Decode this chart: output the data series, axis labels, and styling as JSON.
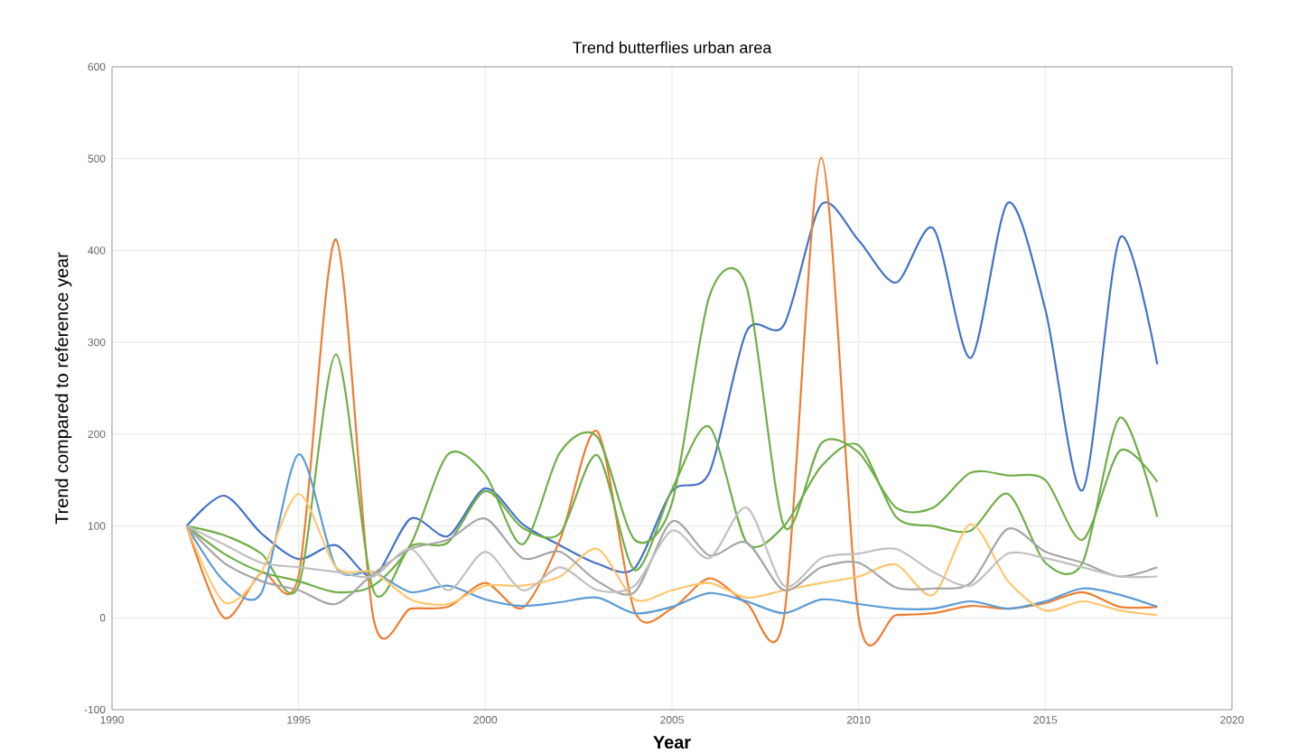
{
  "chart_data": {
    "type": "line",
    "title": "Trend butterflies urban area",
    "xlabel": "Year",
    "ylabel": "Trend compared to reference year",
    "x": [
      1992,
      1993,
      1994,
      1995,
      1996,
      1997,
      1998,
      1999,
      2000,
      2001,
      2002,
      2003,
      2004,
      2005,
      2006,
      2007,
      2008,
      2009,
      2010,
      2011,
      2012,
      2013,
      2014,
      2015,
      2016,
      2017,
      2018
    ],
    "series": [
      {
        "color": "#4472c4",
        "values": [
          100,
          133,
          92,
          64,
          79,
          45,
          108,
          89,
          141,
          102,
          79,
          59,
          54,
          138,
          158,
          312,
          319,
          450,
          411,
          365,
          424,
          283,
          452,
          336,
          139,
          414,
          276
        ]
      },
      {
        "color": "#ed7d31",
        "values": [
          100,
          0,
          49,
          46,
          412,
          0,
          10,
          12,
          38,
          11,
          85,
          203,
          7,
          10,
          43,
          16,
          1,
          501,
          0,
          3,
          5,
          13,
          10,
          16,
          28,
          12,
          12
        ]
      },
      {
        "color": "#70ad47",
        "values": [
          100,
          90,
          70,
          35,
          287,
          30,
          78,
          82,
          138,
          98,
          92,
          177,
          52,
          140,
          208,
          82,
          100,
          165,
          188,
          110,
          100,
          95,
          135,
          60,
          60,
          218,
          110
        ]
      },
      {
        "color": "#70ad47",
        "values": [
          100,
          70,
          50,
          40,
          28,
          35,
          80,
          178,
          156,
          80,
          180,
          197,
          85,
          125,
          350,
          360,
          100,
          190,
          180,
          120,
          120,
          158,
          155,
          150,
          85,
          182,
          148
        ]
      },
      {
        "color": "#5b9bd5",
        "values": [
          100,
          40,
          27,
          178,
          55,
          50,
          28,
          35,
          20,
          13,
          17,
          22,
          5,
          12,
          27,
          18,
          5,
          20,
          15,
          10,
          10,
          18,
          10,
          18,
          32,
          25,
          12
        ]
      },
      {
        "color": "#ffc66d",
        "values": [
          100,
          17,
          50,
          135,
          55,
          50,
          20,
          15,
          35,
          35,
          45,
          75,
          20,
          30,
          38,
          22,
          30,
          38,
          45,
          58,
          25,
          102,
          40,
          8,
          18,
          8,
          3
        ]
      },
      {
        "color": "#a5a5a5",
        "values": [
          100,
          60,
          40,
          30,
          15,
          48,
          75,
          85,
          108,
          65,
          72,
          40,
          28,
          105,
          68,
          82,
          30,
          55,
          60,
          33,
          32,
          38,
          97,
          72,
          60,
          45,
          55
        ]
      },
      {
        "color": "#c0c0c0",
        "values": [
          100,
          80,
          60,
          55,
          50,
          45,
          75,
          30,
          72,
          30,
          55,
          30,
          35,
          95,
          65,
          120,
          35,
          65,
          70,
          75,
          50,
          35,
          70,
          65,
          55,
          45,
          45
        ]
      }
    ],
    "xlim": [
      1990,
      2020
    ],
    "xticks": [
      1990,
      1995,
      2000,
      2005,
      2010,
      2015,
      2020
    ],
    "ylim": [
      -100,
      600
    ],
    "yticks": [
      -100,
      0,
      100,
      200,
      300,
      400,
      500,
      600
    ],
    "grid": true,
    "marker": "none",
    "line_style": "solid"
  }
}
